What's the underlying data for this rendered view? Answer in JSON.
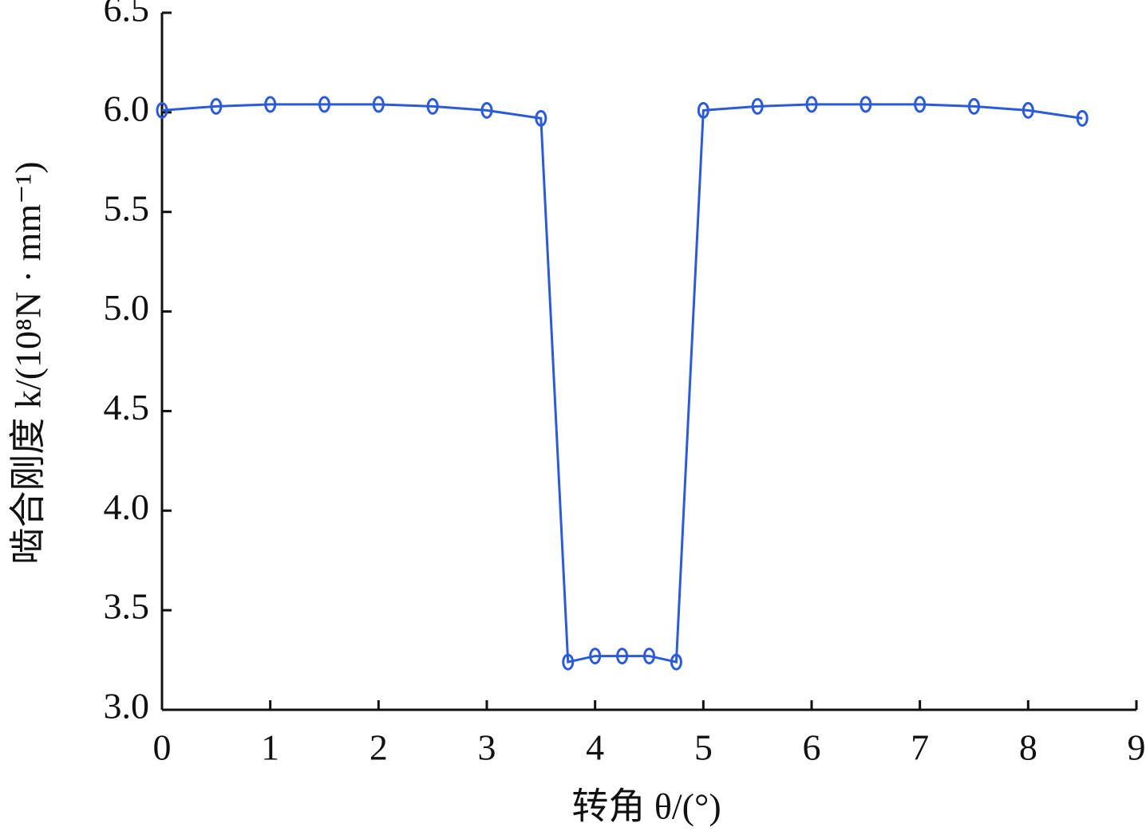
{
  "chart_data": {
    "type": "line",
    "xlabel": "转角 θ/(°)",
    "ylabel": "啮合刚度 k/(10⁸N · mm⁻¹)",
    "x": [
      0,
      0.5,
      1,
      1.5,
      2,
      2.5,
      3,
      3.5,
      3.75,
      4,
      4.25,
      4.5,
      4.75,
      5,
      5.5,
      6,
      6.5,
      7,
      7.5,
      8,
      8.5
    ],
    "series": [
      {
        "color": "#2b5bd9",
        "values": [
          6.01,
          6.03,
          6.04,
          6.04,
          6.04,
          6.03,
          6.01,
          5.97,
          3.24,
          3.27,
          3.27,
          3.27,
          3.24,
          6.01,
          6.03,
          6.04,
          6.04,
          6.04,
          6.03,
          6.01,
          5.97
        ]
      }
    ],
    "xlim": [
      0,
      9
    ],
    "xticks": [
      0,
      1,
      2,
      3,
      4,
      5,
      6,
      7,
      8,
      9
    ],
    "ylim": [
      3.0,
      6.5
    ],
    "yticks": [
      {
        "value": 3.0,
        "label": "3.0"
      },
      {
        "value": 3.5,
        "label": "3.5"
      },
      {
        "value": 4.0,
        "label": "4.0"
      },
      {
        "value": 4.5,
        "label": "4.5"
      },
      {
        "value": 5.0,
        "label": "5.0"
      },
      {
        "value": 5.5,
        "label": "5.5"
      },
      {
        "value": 6.0,
        "label": "6.0"
      },
      {
        "value": 6.5,
        "label": "6.5"
      }
    ],
    "grid": false
  }
}
